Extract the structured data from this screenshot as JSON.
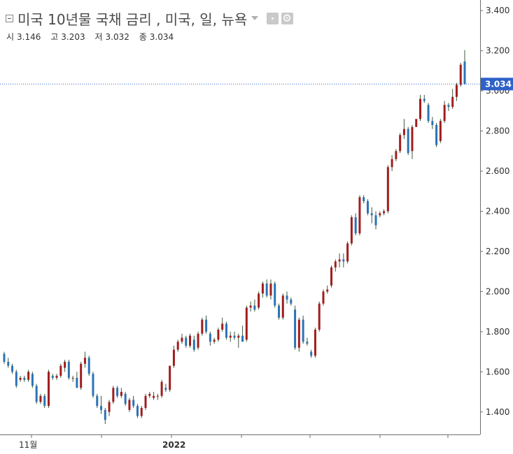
{
  "header": {
    "title": "미국 10년물 국채 금리 , 미국, 일, 뉴욕",
    "ohlc": [
      {
        "label": "시",
        "value": "3.146"
      },
      {
        "label": "고",
        "value": "3.203"
      },
      {
        "label": "저",
        "value": "3.032"
      },
      {
        "label": "종",
        "value": "3.034"
      }
    ],
    "icons": [
      "collapse-icon",
      "dropdown-caret-icon",
      "visibility-eye-icon",
      "settings-gear-icon"
    ]
  },
  "colors": {
    "up": "#a11d1d",
    "down": "#2b73b5",
    "wick": "#3c5a3c",
    "price_line": "#2e62c9",
    "axis": "#6f6f6f",
    "label_text": "#2f2f2f"
  },
  "chart_data": {
    "type": "candlestick",
    "title": "미국 10년물 국채 금리 , 미국, 일, 뉴욕",
    "ylim": [
      1.26,
      3.418
    ],
    "y_ticks": [
      "1.400",
      "1.600",
      "1.800",
      "2.000",
      "2.200",
      "2.400",
      "2.600",
      "2.800",
      "3.000",
      "3.200",
      "3.400"
    ],
    "x_ticks": [
      "11월",
      "2022"
    ],
    "last_price_label": "3.034",
    "last_price": 3.034,
    "grid": false,
    "candles": [
      [
        1.69,
        1.7,
        1.64,
        1.65
      ],
      [
        1.65,
        1.67,
        1.62,
        1.63
      ],
      [
        1.63,
        1.64,
        1.59,
        1.6
      ],
      [
        1.6,
        1.61,
        1.52,
        1.53
      ],
      [
        1.56,
        1.58,
        1.55,
        1.57
      ],
      [
        1.57,
        1.58,
        1.55,
        1.56
      ],
      [
        1.56,
        1.61,
        1.55,
        1.6
      ],
      [
        1.59,
        1.6,
        1.52,
        1.53
      ],
      [
        1.53,
        1.54,
        1.44,
        1.45
      ],
      [
        1.45,
        1.49,
        1.44,
        1.48
      ],
      [
        1.48,
        1.49,
        1.42,
        1.43
      ],
      [
        1.43,
        1.61,
        1.42,
        1.6
      ],
      [
        1.58,
        1.59,
        1.56,
        1.57
      ],
      [
        1.57,
        1.59,
        1.56,
        1.58
      ],
      [
        1.58,
        1.64,
        1.57,
        1.63
      ],
      [
        1.62,
        1.66,
        1.6,
        1.65
      ],
      [
        1.65,
        1.66,
        1.56,
        1.57
      ],
      [
        1.57,
        1.58,
        1.55,
        1.57
      ],
      [
        1.57,
        1.6,
        1.52,
        1.52
      ],
      [
        1.52,
        1.65,
        1.51,
        1.64
      ],
      [
        1.64,
        1.7,
        1.62,
        1.67
      ],
      [
        1.67,
        1.68,
        1.58,
        1.59
      ],
      [
        1.59,
        1.6,
        1.47,
        1.48
      ],
      [
        1.48,
        1.49,
        1.42,
        1.43
      ],
      [
        1.43,
        1.48,
        1.39,
        1.41
      ],
      [
        1.41,
        1.42,
        1.34,
        1.36
      ],
      [
        1.4,
        1.46,
        1.38,
        1.45
      ],
      [
        1.45,
        1.53,
        1.44,
        1.52
      ],
      [
        1.52,
        1.53,
        1.47,
        1.48
      ],
      [
        1.48,
        1.52,
        1.47,
        1.5
      ],
      [
        1.49,
        1.5,
        1.43,
        1.44
      ],
      [
        1.41,
        1.47,
        1.4,
        1.46
      ],
      [
        1.46,
        1.48,
        1.42,
        1.43
      ],
      [
        1.43,
        1.44,
        1.37,
        1.38
      ],
      [
        1.38,
        1.43,
        1.37,
        1.42
      ],
      [
        1.42,
        1.49,
        1.41,
        1.48
      ],
      [
        1.48,
        1.5,
        1.47,
        1.49
      ],
      [
        1.47,
        1.5,
        1.46,
        1.48
      ],
      [
        1.48,
        1.49,
        1.46,
        1.48
      ],
      [
        1.48,
        1.56,
        1.47,
        1.55
      ],
      [
        1.52,
        1.54,
        1.5,
        1.51
      ],
      [
        1.51,
        1.63,
        1.5,
        1.63
      ],
      [
        1.63,
        1.73,
        1.62,
        1.71
      ],
      [
        1.71,
        1.76,
        1.7,
        1.75
      ],
      [
        1.75,
        1.79,
        1.74,
        1.77
      ],
      [
        1.77,
        1.78,
        1.72,
        1.73
      ],
      [
        1.73,
        1.79,
        1.72,
        1.78
      ],
      [
        1.76,
        1.78,
        1.7,
        1.71
      ],
      [
        1.72,
        1.8,
        1.71,
        1.79
      ],
      [
        1.79,
        1.87,
        1.78,
        1.86
      ],
      [
        1.86,
        1.88,
        1.79,
        1.8
      ],
      [
        1.79,
        1.8,
        1.73,
        1.75
      ],
      [
        1.75,
        1.77,
        1.74,
        1.76
      ],
      [
        1.76,
        1.82,
        1.75,
        1.81
      ],
      [
        1.81,
        1.87,
        1.8,
        1.84
      ],
      [
        1.84,
        1.85,
        1.76,
        1.77
      ],
      [
        1.77,
        1.8,
        1.75,
        1.78
      ],
      [
        1.78,
        1.8,
        1.76,
        1.77
      ],
      [
        1.77,
        1.79,
        1.72,
        1.78
      ],
      [
        1.78,
        1.83,
        1.75,
        1.75
      ],
      [
        1.76,
        1.93,
        1.75,
        1.92
      ],
      [
        1.92,
        1.95,
        1.9,
        1.93
      ],
      [
        1.93,
        1.96,
        1.9,
        1.91
      ],
      [
        1.92,
        2.0,
        1.91,
        1.99
      ],
      [
        1.99,
        2.05,
        1.97,
        2.04
      ],
      [
        2.04,
        2.06,
        1.97,
        1.98
      ],
      [
        1.98,
        2.06,
        1.96,
        2.04
      ],
      [
        2.04,
        2.05,
        1.92,
        1.93
      ],
      [
        1.93,
        1.94,
        1.86,
        1.87
      ],
      [
        1.87,
        1.99,
        1.86,
        1.98
      ],
      [
        1.98,
        2.0,
        1.94,
        1.96
      ],
      [
        1.96,
        1.97,
        1.93,
        1.94
      ],
      [
        1.91,
        1.93,
        1.71,
        1.72
      ],
      [
        1.72,
        1.87,
        1.7,
        1.86
      ],
      [
        1.86,
        1.88,
        1.74,
        1.75
      ],
      [
        1.75,
        1.77,
        1.73,
        1.74
      ],
      [
        1.7,
        1.71,
        1.67,
        1.68
      ],
      [
        1.68,
        1.82,
        1.67,
        1.81
      ],
      [
        1.81,
        1.95,
        1.8,
        1.94
      ],
      [
        1.94,
        2.01,
        1.93,
        2.0
      ],
      [
        2.0,
        2.03,
        1.99,
        2.01
      ],
      [
        2.03,
        2.13,
        2.02,
        2.12
      ],
      [
        2.12,
        2.16,
        2.1,
        2.15
      ],
      [
        2.15,
        2.19,
        2.12,
        2.16
      ],
      [
        2.16,
        2.19,
        2.12,
        2.15
      ],
      [
        2.15,
        2.25,
        2.14,
        2.24
      ],
      [
        2.24,
        2.38,
        2.23,
        2.37
      ],
      [
        2.37,
        2.39,
        2.28,
        2.29
      ],
      [
        2.29,
        2.48,
        2.28,
        2.47
      ],
      [
        2.47,
        2.48,
        2.44,
        2.45
      ],
      [
        2.45,
        2.46,
        2.38,
        2.39
      ],
      [
        2.39,
        2.42,
        2.34,
        2.38
      ],
      [
        2.38,
        2.4,
        2.31,
        2.33
      ],
      [
        2.38,
        2.4,
        2.37,
        2.39
      ],
      [
        2.39,
        2.41,
        2.38,
        2.4
      ],
      [
        2.4,
        2.63,
        2.39,
        2.62
      ],
      [
        2.62,
        2.68,
        2.6,
        2.66
      ],
      [
        2.66,
        2.71,
        2.65,
        2.7
      ],
      [
        2.7,
        2.79,
        2.69,
        2.78
      ],
      [
        2.78,
        2.86,
        2.76,
        2.81
      ],
      [
        2.81,
        2.82,
        2.68,
        2.69
      ],
      [
        2.7,
        2.83,
        2.66,
        2.82
      ],
      [
        2.82,
        2.86,
        2.84,
        2.86
      ],
      [
        2.86,
        2.98,
        2.85,
        2.96
      ],
      [
        2.96,
        2.98,
        2.94,
        2.95
      ],
      [
        2.93,
        2.94,
        2.84,
        2.85
      ],
      [
        2.85,
        2.87,
        2.81,
        2.83
      ],
      [
        2.83,
        2.84,
        2.72,
        2.73
      ],
      [
        2.75,
        2.86,
        2.74,
        2.85
      ],
      [
        2.85,
        2.95,
        2.84,
        2.93
      ],
      [
        2.93,
        2.94,
        2.9,
        2.92
      ],
      [
        2.92,
        3.01,
        2.91,
        2.97
      ],
      [
        2.97,
        3.04,
        2.95,
        3.03
      ],
      [
        3.03,
        3.14,
        3.02,
        3.13
      ],
      [
        3.146,
        3.203,
        3.032,
        3.034
      ]
    ]
  }
}
